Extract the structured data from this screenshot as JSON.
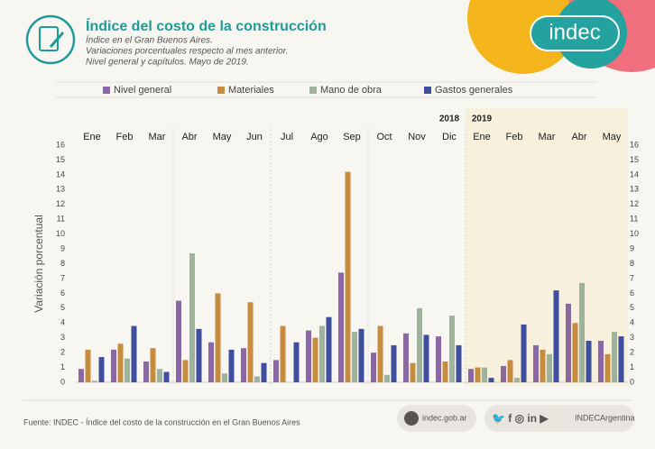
{
  "header": {
    "logo": "indec",
    "title": "Índice del costo de la construcción",
    "subtitle": [
      "Índice en el Gran Buenos Aires.",
      "Variaciones porcentuales respecto al mes anterior.",
      "Nivel general y capítulos. Mayo de 2019."
    ]
  },
  "chart_data": {
    "type": "bar",
    "y_label": "Variación porcentual",
    "years": [
      "2018",
      "2019"
    ],
    "categories": [
      "Ene",
      "Feb",
      "Mar",
      "Abr",
      "May",
      "Jun",
      "Jul",
      "Ago",
      "Sep",
      "Oct",
      "Nov",
      "Dic",
      "Ene",
      "Feb",
      "Mar",
      "Abr",
      "May"
    ],
    "series": [
      {
        "name": "Nivel general",
        "color": "#8a68a6",
        "values": [
          0.9,
          2.2,
          1.4,
          5.5,
          2.7,
          2.3,
          1.5,
          3.5,
          7.4,
          2.0,
          3.3,
          3.1,
          0.9,
          1.1,
          2.5,
          5.3,
          2.8
        ]
      },
      {
        "name": "Materiales",
        "color": "#c98b3d",
        "values": [
          2.2,
          2.6,
          2.3,
          1.5,
          6.0,
          5.4,
          3.8,
          3.0,
          14.2,
          3.8,
          1.3,
          1.4,
          1.0,
          1.5,
          2.2,
          4.0,
          1.9
        ]
      },
      {
        "name": "Mano de obra",
        "color": "#9db39c",
        "values": [
          0.1,
          1.6,
          0.9,
          8.7,
          0.6,
          0.4,
          0.0,
          3.8,
          3.4,
          0.5,
          5.0,
          4.5,
          1.0,
          0.3,
          1.9,
          6.7,
          3.4
        ]
      },
      {
        "name": "Gastos generales",
        "color": "#3f4e9f",
        "values": [
          1.7,
          3.8,
          0.7,
          3.6,
          2.2,
          1.3,
          2.7,
          4.4,
          3.6,
          2.5,
          3.2,
          2.5,
          0.3,
          3.9,
          6.2,
          2.8,
          3.1
        ]
      }
    ],
    "ylim": [
      0,
      16
    ],
    "yticks": [
      0,
      1,
      2,
      3,
      4,
      5,
      6,
      7,
      8,
      9,
      10,
      11,
      12,
      13,
      14,
      15,
      16
    ]
  },
  "footer": {
    "source": "Fuente: INDEC - Índice del costo de la construcción en el Gran Buenos Aires",
    "website": "indec.gob.ar",
    "social": "INDECArgentina"
  }
}
